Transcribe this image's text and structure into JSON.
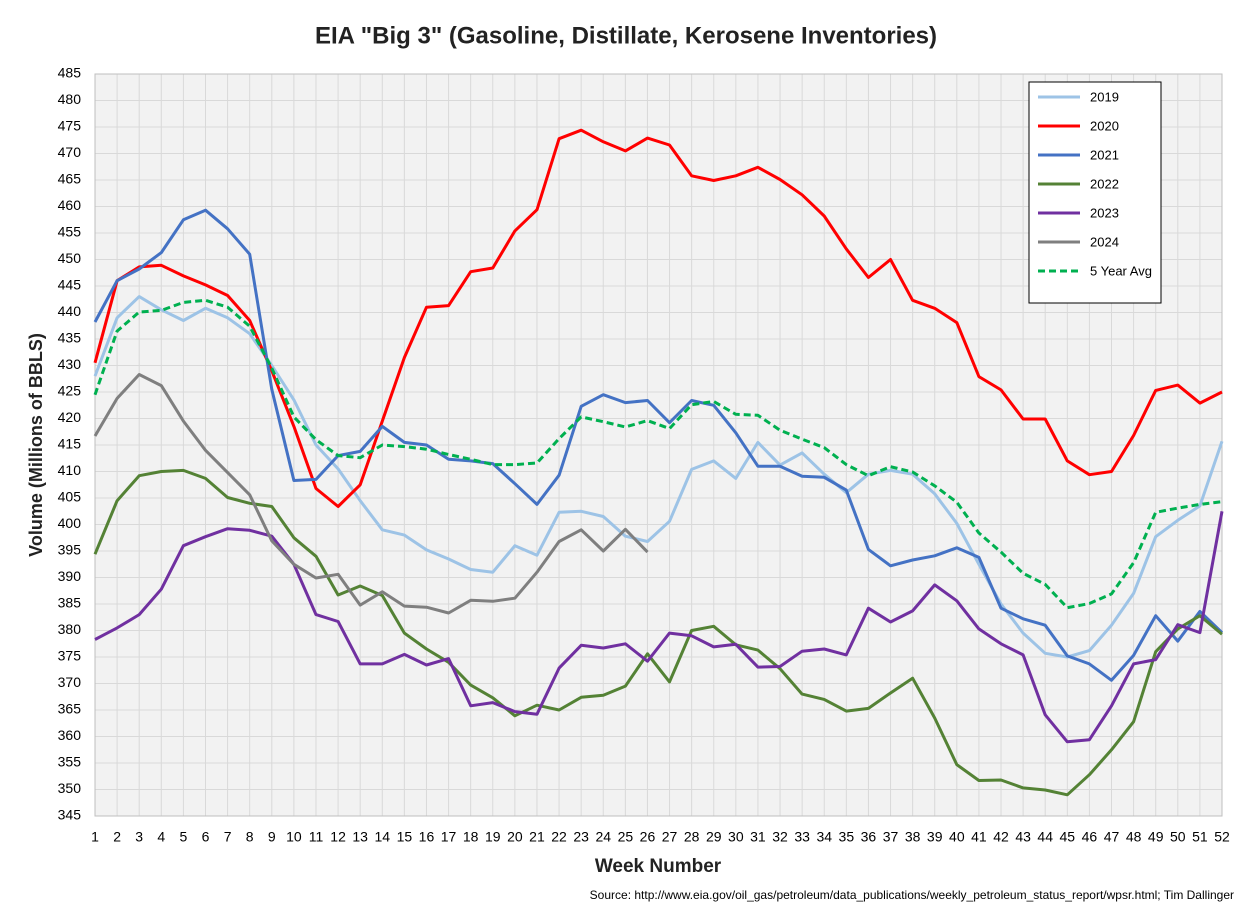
{
  "chart_data": {
    "type": "line",
    "title": "EIA \"Big 3\" (Gasoline, Distillate, Kerosene Inventories)",
    "x_label": "Week Number",
    "y_label": "Volume (Millions of BBLS)",
    "source": "Source: http://www.eia.gov/oil_gas/petroleum/data_publications/weekly_petroleum_status_report/wpsr.html; Tim Dallinger",
    "x": [
      1,
      2,
      3,
      4,
      5,
      6,
      7,
      8,
      9,
      10,
      11,
      12,
      13,
      14,
      15,
      16,
      17,
      18,
      19,
      20,
      21,
      22,
      23,
      24,
      25,
      26,
      27,
      28,
      29,
      30,
      31,
      32,
      33,
      34,
      35,
      36,
      37,
      38,
      39,
      40,
      41,
      42,
      43,
      44,
      45,
      46,
      47,
      48,
      49,
      50,
      51,
      52
    ],
    "xlim": [
      1,
      52
    ],
    "ylim": [
      345,
      485
    ],
    "yticks": [
      345,
      350,
      355,
      360,
      365,
      370,
      375,
      380,
      385,
      390,
      395,
      400,
      405,
      410,
      415,
      420,
      425,
      430,
      435,
      440,
      445,
      450,
      455,
      460,
      465,
      470,
      475,
      480,
      485
    ],
    "grid": true,
    "legend": "upper right",
    "series": [
      {
        "name": "2019",
        "color": "#9dc3e6",
        "style": "solid",
        "values": [
          428,
          439,
          443,
          440.5,
          438.5,
          440.8,
          439,
          436,
          430,
          423.5,
          415,
          410.5,
          404.5,
          399,
          398,
          395.2,
          393.5,
          391.5,
          391,
          396,
          394.2,
          402.3,
          402.5,
          401.5,
          397.8,
          396.8,
          400.6,
          410.4,
          412,
          408.7,
          415.5,
          411.2,
          413.5,
          409.5,
          406,
          409.5,
          410.2,
          409.5,
          405.8,
          400.2,
          392.5,
          385,
          379.5,
          375.7,
          375,
          376.2,
          381,
          387,
          397.7,
          400.8,
          403.5,
          415.7
        ]
      },
      {
        "name": "2020",
        "color": "#ff0000",
        "style": "solid",
        "values": [
          430.5,
          446,
          448.6,
          448.9,
          446.9,
          445.2,
          443.2,
          438.5,
          429,
          418.5,
          406.8,
          403.4,
          407.5,
          419.5,
          431.5,
          441,
          441.3,
          447.7,
          448.4,
          455.4,
          459.4,
          472.8,
          474.4,
          472.2,
          470.5,
          472.9,
          471.6,
          465.8,
          464.9,
          465.8,
          467.4,
          465.1,
          462.2,
          458.2,
          452,
          446.6,
          450,
          442.3,
          440.8,
          438.1,
          427.9,
          425.4,
          419.9,
          419.9,
          412,
          409.4,
          410,
          416.8,
          425.3,
          426.3,
          422.9,
          425
        ]
      },
      {
        "name": "2021",
        "color": "#4472c4",
        "style": "solid",
        "values": [
          438.2,
          446,
          448.2,
          451.3,
          457.5,
          459.3,
          455.8,
          451,
          425.5,
          408.3,
          408.5,
          413,
          413.8,
          418.5,
          415.5,
          415,
          412.3,
          412,
          411.5,
          407.7,
          403.8,
          409.3,
          422.3,
          424.5,
          423,
          423.4,
          419.2,
          423.4,
          422.5,
          417.3,
          411,
          411,
          409.1,
          408.9,
          406.5,
          395.3,
          392.2,
          393.3,
          394.1,
          395.6,
          393.8,
          384.2,
          382.2,
          381,
          375.2,
          373.7,
          370.6,
          375.3,
          382.8,
          378,
          383.6,
          379.6
        ]
      },
      {
        "name": "2022",
        "color": "#548235",
        "style": "solid",
        "values": [
          394.4,
          404.5,
          409.2,
          410,
          410.2,
          408.7,
          405.1,
          404,
          403.4,
          397.5,
          394,
          386.7,
          388.4,
          386.6,
          379.5,
          376.5,
          374,
          369.7,
          367.3,
          363.9,
          365.9,
          365,
          367.4,
          367.8,
          369.5,
          375.6,
          370.3,
          380,
          380.8,
          377.3,
          376.3,
          372.8,
          368,
          367,
          364.8,
          365.3,
          368.2,
          371,
          363.5,
          354.7,
          351.7,
          351.8,
          350.3,
          349.9,
          349,
          352.8,
          357.5,
          362.8,
          376,
          380.3,
          382.8,
          379.3
        ]
      },
      {
        "name": "2023",
        "color": "#7030a0",
        "style": "solid",
        "values": [
          378.3,
          380.5,
          383,
          387.8,
          396,
          397.7,
          399.2,
          398.9,
          397.8,
          392.5,
          383,
          381.7,
          373.7,
          373.7,
          375.5,
          373.5,
          374.7,
          365.8,
          366.4,
          364.7,
          364.2,
          372.9,
          377.2,
          376.7,
          377.5,
          374.2,
          379.5,
          379,
          376.9,
          377.4,
          373.1,
          373.2,
          376.1,
          376.5,
          375.4,
          384.2,
          381.6,
          383.7,
          388.6,
          385.6,
          380.3,
          377.5,
          375.4,
          364.1,
          359,
          359.4,
          365.8,
          373.7,
          374.5,
          381.1,
          379.6,
          402.5
        ]
      },
      {
        "name": "2024",
        "color": "#7f7f7f",
        "style": "solid",
        "values": [
          416.7,
          423.8,
          428.3,
          426.2,
          419.5,
          414,
          409.8,
          405.6,
          396.9,
          392.5,
          389.9,
          390.6,
          384.8,
          387.3,
          384.6,
          384.4,
          383.3,
          385.7,
          385.5,
          386.1,
          391,
          396.8,
          399,
          395,
          399.1,
          394.8,
          null,
          null,
          null,
          null,
          null,
          null,
          null,
          null,
          null,
          null,
          null,
          null,
          null,
          null,
          null,
          null,
          null,
          null,
          null,
          null,
          null,
          null,
          null,
          null,
          null,
          null
        ]
      },
      {
        "name": "5 Year Avg",
        "color": "#00b050",
        "style": "dashed",
        "values": [
          424.5,
          436.5,
          440.1,
          440.4,
          441.9,
          442.3,
          441,
          437.4,
          429.5,
          420.3,
          416,
          413,
          412.6,
          415,
          414.7,
          414.2,
          413.2,
          412.3,
          411.3,
          411.3,
          411.6,
          416.2,
          420.3,
          419.4,
          418.4,
          419.6,
          418.1,
          422.6,
          423.2,
          420.8,
          420.6,
          417.8,
          416.1,
          414.5,
          411.3,
          409.2,
          410.9,
          409.9,
          407.3,
          404.2,
          398.4,
          394.8,
          390.8,
          388.7,
          384.3,
          385.1,
          386.9,
          392.8,
          402.3,
          403.1,
          403.8,
          404.3
        ]
      }
    ]
  }
}
